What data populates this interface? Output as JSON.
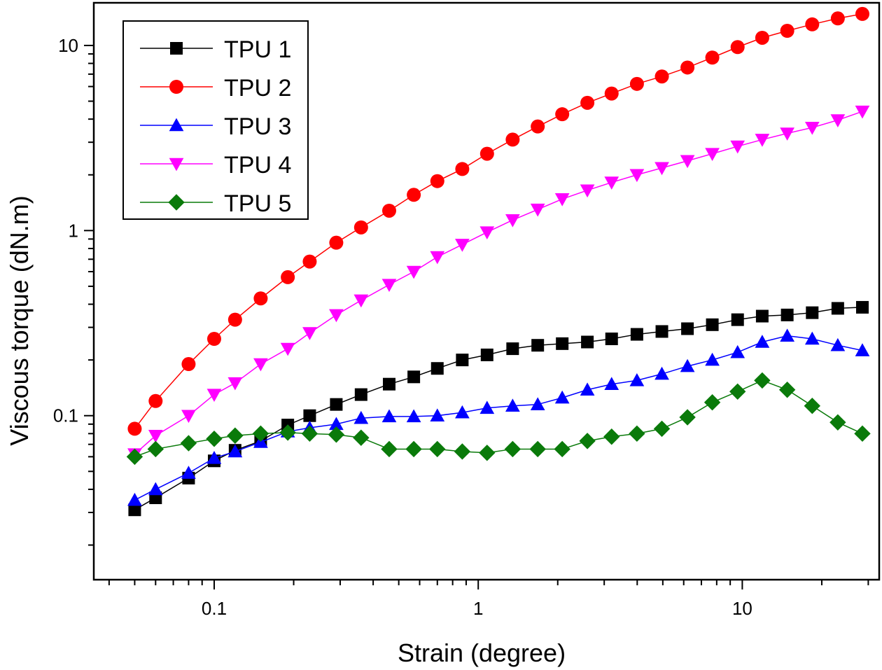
{
  "chart_data": {
    "type": "line",
    "x_scale": "log",
    "y_scale": "log",
    "xlabel": "Strain (degree)",
    "ylabel": "Viscous torque (dN.m)",
    "xlim": [
      0.035,
      33
    ],
    "ylim": [
      0.013,
      17
    ],
    "x_ticks": [
      {
        "value": 0.1,
        "label": "0.1"
      },
      {
        "value": 1,
        "label": "1"
      },
      {
        "value": 10,
        "label": "10"
      }
    ],
    "y_ticks": [
      {
        "value": 0.1,
        "label": "0.1"
      },
      {
        "value": 1,
        "label": "1"
      },
      {
        "value": 10,
        "label": "10"
      }
    ],
    "grid": false,
    "legend_position": "top-left",
    "x": [
      0.05,
      0.06,
      0.08,
      0.1,
      0.12,
      0.15,
      0.19,
      0.23,
      0.29,
      0.36,
      0.46,
      0.57,
      0.7,
      0.87,
      1.08,
      1.35,
      1.68,
      2.08,
      2.59,
      3.2,
      3.99,
      4.96,
      6.2,
      7.7,
      9.6,
      11.9,
      14.8,
      18.4,
      23.0,
      28.5
    ],
    "series": [
      {
        "name": "TPU 1",
        "color": "#000000",
        "marker": "square",
        "values": [
          0.031,
          0.036,
          0.046,
          0.057,
          0.065,
          0.073,
          0.089,
          0.1,
          0.115,
          0.13,
          0.148,
          0.162,
          0.18,
          0.2,
          0.213,
          0.23,
          0.24,
          0.245,
          0.25,
          0.26,
          0.275,
          0.285,
          0.295,
          0.31,
          0.33,
          0.345,
          0.35,
          0.36,
          0.38,
          0.385
        ]
      },
      {
        "name": "TPU 2",
        "color": "#ff0000",
        "marker": "circle",
        "values": [
          0.085,
          0.12,
          0.19,
          0.26,
          0.33,
          0.43,
          0.56,
          0.68,
          0.86,
          1.04,
          1.28,
          1.56,
          1.85,
          2.15,
          2.6,
          3.1,
          3.65,
          4.25,
          4.9,
          5.5,
          6.2,
          6.8,
          7.6,
          8.6,
          9.8,
          11.0,
          12.0,
          13.0,
          14.0,
          14.8
        ]
      },
      {
        "name": "TPU 3",
        "color": "#0000ff",
        "marker": "triangle-up",
        "values": [
          0.035,
          0.04,
          0.049,
          0.059,
          0.064,
          0.072,
          0.082,
          0.086,
          0.09,
          0.097,
          0.099,
          0.099,
          0.1,
          0.104,
          0.11,
          0.113,
          0.115,
          0.125,
          0.138,
          0.148,
          0.155,
          0.168,
          0.185,
          0.2,
          0.22,
          0.25,
          0.27,
          0.26,
          0.24,
          0.225
        ]
      },
      {
        "name": "TPU 4",
        "color": "#ff00ff",
        "marker": "triangle-down",
        "values": [
          0.062,
          0.078,
          0.1,
          0.13,
          0.15,
          0.19,
          0.23,
          0.28,
          0.35,
          0.42,
          0.51,
          0.6,
          0.72,
          0.84,
          0.98,
          1.14,
          1.3,
          1.48,
          1.65,
          1.82,
          2.0,
          2.18,
          2.38,
          2.6,
          2.85,
          3.1,
          3.35,
          3.6,
          3.95,
          4.4
        ]
      },
      {
        "name": "TPU 5",
        "color": "#0a7a0a",
        "marker": "diamond",
        "values": [
          0.06,
          0.066,
          0.071,
          0.075,
          0.078,
          0.08,
          0.081,
          0.08,
          0.079,
          0.076,
          0.066,
          0.066,
          0.066,
          0.064,
          0.063,
          0.066,
          0.066,
          0.066,
          0.073,
          0.077,
          0.08,
          0.085,
          0.098,
          0.118,
          0.135,
          0.155,
          0.138,
          0.113,
          0.092,
          0.08
        ]
      }
    ]
  }
}
